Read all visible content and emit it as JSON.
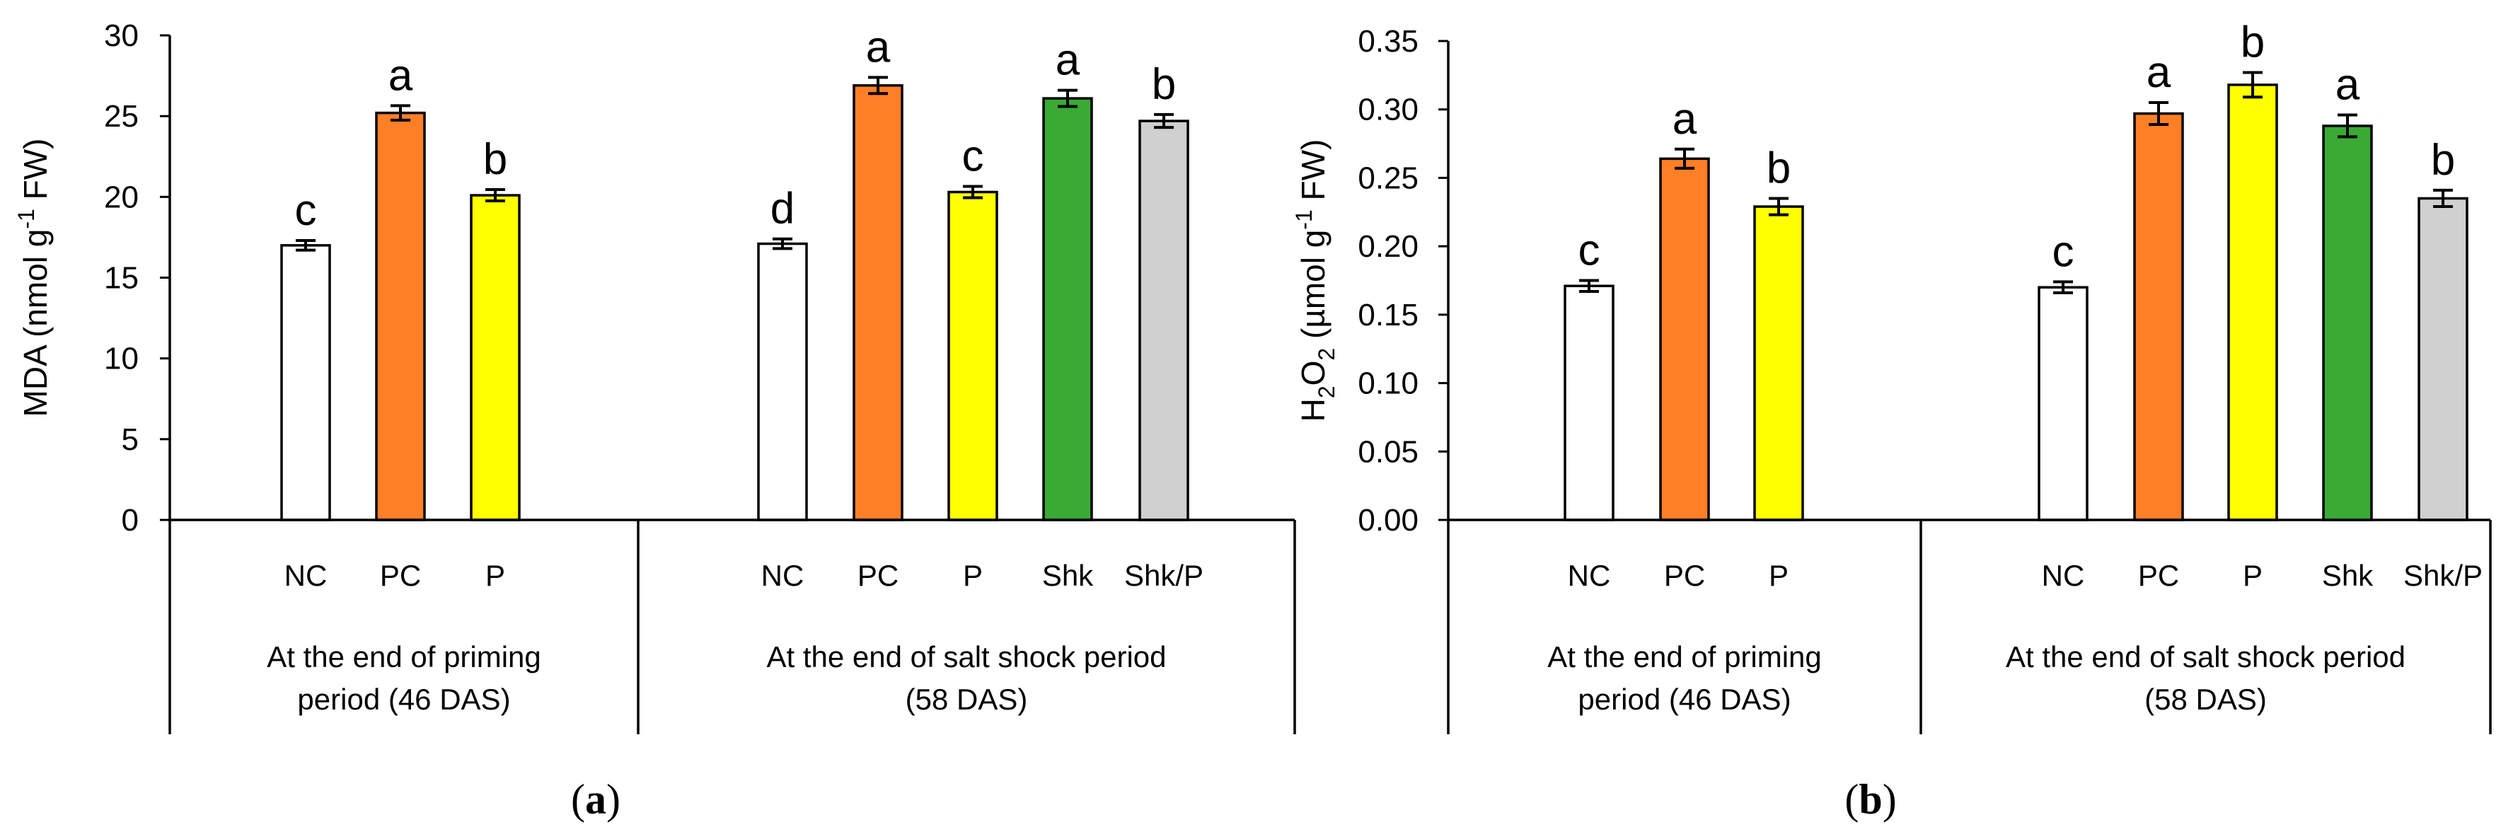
{
  "colors": {
    "NC": "#ffffff",
    "PC": "#ff7f27",
    "P": "#ffff00",
    "Shk": "#3aaa35",
    "Shk/P": "#d0d0d0",
    "stroke": "#000000"
  },
  "chart_data": [
    {
      "type": "bar",
      "panel": "(a)",
      "panel_letter": "a",
      "ylabel": {
        "main": "MDA (nmol g",
        "sup": "-1",
        "tail": " FW)"
      },
      "ylim": [
        0,
        30
      ],
      "yticks": [
        "0",
        "5",
        "10",
        "15",
        "20",
        "25",
        "30"
      ],
      "groups": [
        {
          "label_line1": "At the end of priming",
          "label_line2": "period (46 DAS)",
          "bars": [
            {
              "category": "NC",
              "value": 17.0,
              "error": 0.3,
              "letter": "c"
            },
            {
              "category": "PC",
              "value": 25.2,
              "error": 0.45,
              "letter": "a"
            },
            {
              "category": "P",
              "value": 20.1,
              "error": 0.35,
              "letter": "b"
            }
          ]
        },
        {
          "label_line1": "At the end of salt shock period",
          "label_line2": "(58 DAS)",
          "bars": [
            {
              "category": "NC",
              "value": 17.1,
              "error": 0.3,
              "letter": "d"
            },
            {
              "category": "PC",
              "value": 26.9,
              "error": 0.5,
              "letter": "a"
            },
            {
              "category": "P",
              "value": 20.3,
              "error": 0.35,
              "letter": "c"
            },
            {
              "category": "Shk",
              "value": 26.1,
              "error": 0.5,
              "letter": "a"
            },
            {
              "category": "Shk/P",
              "value": 24.7,
              "error": 0.4,
              "letter": "b"
            }
          ]
        }
      ]
    },
    {
      "type": "bar",
      "panel": "(b)",
      "panel_letter": "b",
      "ylabel": {
        "main": "H",
        "sub": "2",
        "mid": "O",
        "sub2": "2",
        "rest": " (µmol g",
        "sup": "-1",
        "tail": " FW)"
      },
      "ylim": [
        0,
        0.35
      ],
      "yticks": [
        "0.00",
        "0.05",
        "0.10",
        "0.15",
        "0.20",
        "0.25",
        "0.30",
        "0.35"
      ],
      "groups": [
        {
          "label_line1": "At the end of priming",
          "label_line2": "period (46 DAS)",
          "bars": [
            {
              "category": "NC",
              "value": 0.171,
              "error": 0.004,
              "letter": "c"
            },
            {
              "category": "PC",
              "value": 0.264,
              "error": 0.007,
              "letter": "a"
            },
            {
              "category": "P",
              "value": 0.229,
              "error": 0.006,
              "letter": "b"
            }
          ]
        },
        {
          "label_line1": "At the end of salt shock period",
          "label_line2": "(58 DAS)",
          "bars": [
            {
              "category": "NC",
              "value": 0.17,
              "error": 0.004,
              "letter": "c"
            },
            {
              "category": "PC",
              "value": 0.297,
              "error": 0.008,
              "letter": "a"
            },
            {
              "category": "P",
              "value": 0.318,
              "error": 0.009,
              "letter": "b"
            },
            {
              "category": "Shk",
              "value": 0.288,
              "error": 0.008,
              "letter": "a"
            },
            {
              "category": "Shk/P",
              "value": 0.235,
              "error": 0.006,
              "letter": "b"
            }
          ]
        }
      ]
    }
  ]
}
